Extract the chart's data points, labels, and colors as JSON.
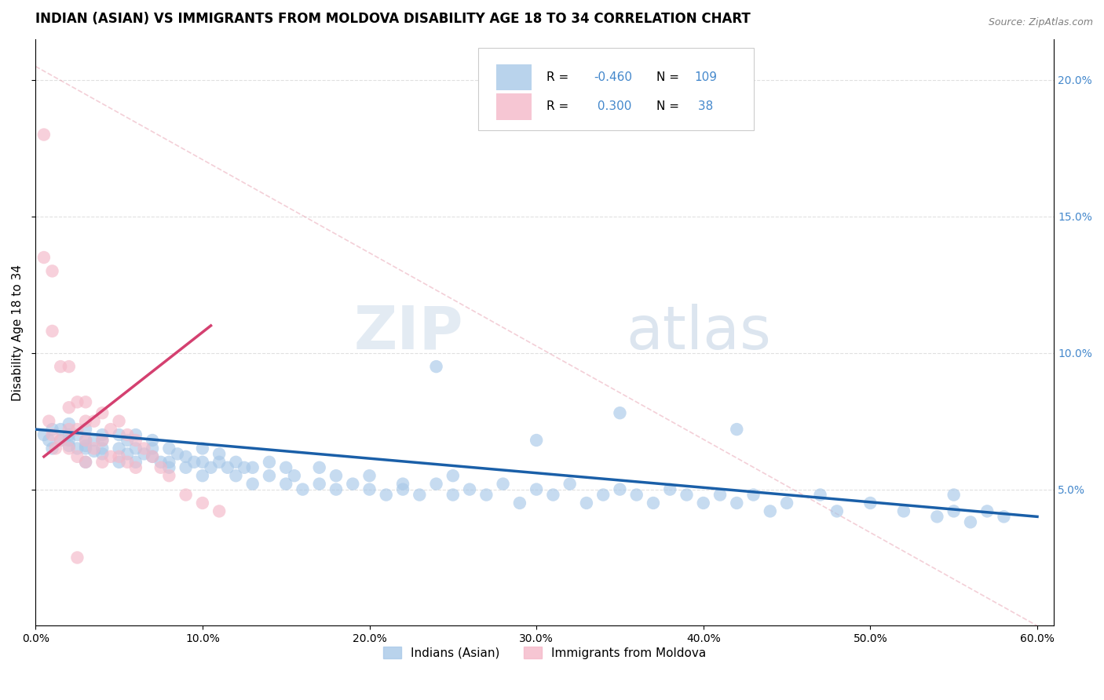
{
  "title": "INDIAN (ASIAN) VS IMMIGRANTS FROM MOLDOVA DISABILITY AGE 18 TO 34 CORRELATION CHART",
  "source": "Source: ZipAtlas.com",
  "ylabel": "Disability Age 18 to 34",
  "xlim": [
    0.0,
    0.61
  ],
  "ylim": [
    0.0,
    0.215
  ],
  "xticks": [
    0.0,
    0.1,
    0.2,
    0.3,
    0.4,
    0.5,
    0.6
  ],
  "xticklabels": [
    "0.0%",
    "10.0%",
    "20.0%",
    "30.0%",
    "40.0%",
    "50.0%",
    "60.0%"
  ],
  "yticks_right": [
    0.05,
    0.1,
    0.15,
    0.2
  ],
  "ytick_right_labels": [
    "5.0%",
    "10.0%",
    "15.0%",
    "20.0%"
  ],
  "blue_color": "#a8c8e8",
  "pink_color": "#f4b8c8",
  "blue_line_color": "#1a5fa8",
  "pink_line_color": "#d44070",
  "pink_dash_color": "#e8a0b0",
  "watermark_zip": "ZIP",
  "watermark_atlas": "atlas",
  "background_color": "#ffffff",
  "grid_color": "#cccccc",
  "title_fontsize": 12,
  "label_fontsize": 11,
  "tick_fontsize": 10,
  "right_tick_color": "#4488cc",
  "blue_scatter_x": [
    0.005,
    0.008,
    0.01,
    0.01,
    0.015,
    0.015,
    0.02,
    0.02,
    0.02,
    0.02,
    0.025,
    0.025,
    0.03,
    0.03,
    0.03,
    0.03,
    0.03,
    0.035,
    0.035,
    0.04,
    0.04,
    0.04,
    0.04,
    0.05,
    0.05,
    0.05,
    0.055,
    0.055,
    0.06,
    0.06,
    0.06,
    0.065,
    0.07,
    0.07,
    0.07,
    0.075,
    0.08,
    0.08,
    0.08,
    0.085,
    0.09,
    0.09,
    0.095,
    0.1,
    0.1,
    0.1,
    0.105,
    0.11,
    0.11,
    0.115,
    0.12,
    0.12,
    0.125,
    0.13,
    0.13,
    0.14,
    0.14,
    0.15,
    0.15,
    0.155,
    0.16,
    0.17,
    0.17,
    0.18,
    0.18,
    0.19,
    0.2,
    0.2,
    0.21,
    0.22,
    0.22,
    0.23,
    0.24,
    0.25,
    0.25,
    0.26,
    0.27,
    0.28,
    0.29,
    0.3,
    0.31,
    0.32,
    0.33,
    0.34,
    0.35,
    0.36,
    0.37,
    0.38,
    0.39,
    0.4,
    0.41,
    0.42,
    0.43,
    0.44,
    0.45,
    0.47,
    0.48,
    0.5,
    0.52,
    0.54,
    0.55,
    0.55,
    0.56,
    0.57,
    0.58,
    0.24,
    0.3,
    0.35,
    0.42
  ],
  "blue_scatter_y": [
    0.07,
    0.068,
    0.072,
    0.065,
    0.068,
    0.072,
    0.066,
    0.07,
    0.074,
    0.068,
    0.065,
    0.07,
    0.065,
    0.068,
    0.072,
    0.066,
    0.06,
    0.068,
    0.064,
    0.065,
    0.07,
    0.063,
    0.068,
    0.065,
    0.06,
    0.07,
    0.063,
    0.068,
    0.06,
    0.065,
    0.07,
    0.063,
    0.062,
    0.065,
    0.068,
    0.06,
    0.06,
    0.065,
    0.058,
    0.063,
    0.058,
    0.062,
    0.06,
    0.055,
    0.06,
    0.065,
    0.058,
    0.06,
    0.063,
    0.058,
    0.055,
    0.06,
    0.058,
    0.052,
    0.058,
    0.055,
    0.06,
    0.052,
    0.058,
    0.055,
    0.05,
    0.052,
    0.058,
    0.05,
    0.055,
    0.052,
    0.05,
    0.055,
    0.048,
    0.052,
    0.05,
    0.048,
    0.052,
    0.048,
    0.055,
    0.05,
    0.048,
    0.052,
    0.045,
    0.05,
    0.048,
    0.052,
    0.045,
    0.048,
    0.05,
    0.048,
    0.045,
    0.05,
    0.048,
    0.045,
    0.048,
    0.045,
    0.048,
    0.042,
    0.045,
    0.048,
    0.042,
    0.045,
    0.042,
    0.04,
    0.042,
    0.048,
    0.038,
    0.042,
    0.04,
    0.095,
    0.068,
    0.078,
    0.072
  ],
  "pink_scatter_x": [
    0.005,
    0.008,
    0.01,
    0.01,
    0.012,
    0.015,
    0.015,
    0.02,
    0.02,
    0.02,
    0.02,
    0.025,
    0.025,
    0.025,
    0.03,
    0.03,
    0.03,
    0.03,
    0.035,
    0.035,
    0.04,
    0.04,
    0.04,
    0.045,
    0.045,
    0.05,
    0.05,
    0.055,
    0.055,
    0.06,
    0.06,
    0.065,
    0.07,
    0.075,
    0.08,
    0.09,
    0.1,
    0.11
  ],
  "pink_scatter_y": [
    0.135,
    0.075,
    0.108,
    0.07,
    0.065,
    0.095,
    0.068,
    0.095,
    0.08,
    0.072,
    0.065,
    0.082,
    0.072,
    0.062,
    0.082,
    0.075,
    0.068,
    0.06,
    0.075,
    0.065,
    0.078,
    0.068,
    0.06,
    0.072,
    0.062,
    0.075,
    0.062,
    0.07,
    0.06,
    0.068,
    0.058,
    0.065,
    0.062,
    0.058,
    0.055,
    0.048,
    0.045,
    0.042
  ],
  "pink_outlier_x": [
    0.005
  ],
  "pink_outlier_y": [
    0.18
  ],
  "pink_outlier2_x": [
    0.01
  ],
  "pink_outlier2_y": [
    0.13
  ],
  "pink_low_x": [
    0.025
  ],
  "pink_low_y": [
    0.025
  ],
  "blue_line_x": [
    0.0,
    0.6
  ],
  "blue_line_y": [
    0.072,
    0.04
  ],
  "pink_line_x": [
    0.005,
    0.105
  ],
  "pink_line_y": [
    0.062,
    0.11
  ],
  "dash_line_x": [
    0.0,
    0.6
  ],
  "dash_line_y": [
    0.205,
    0.0
  ]
}
